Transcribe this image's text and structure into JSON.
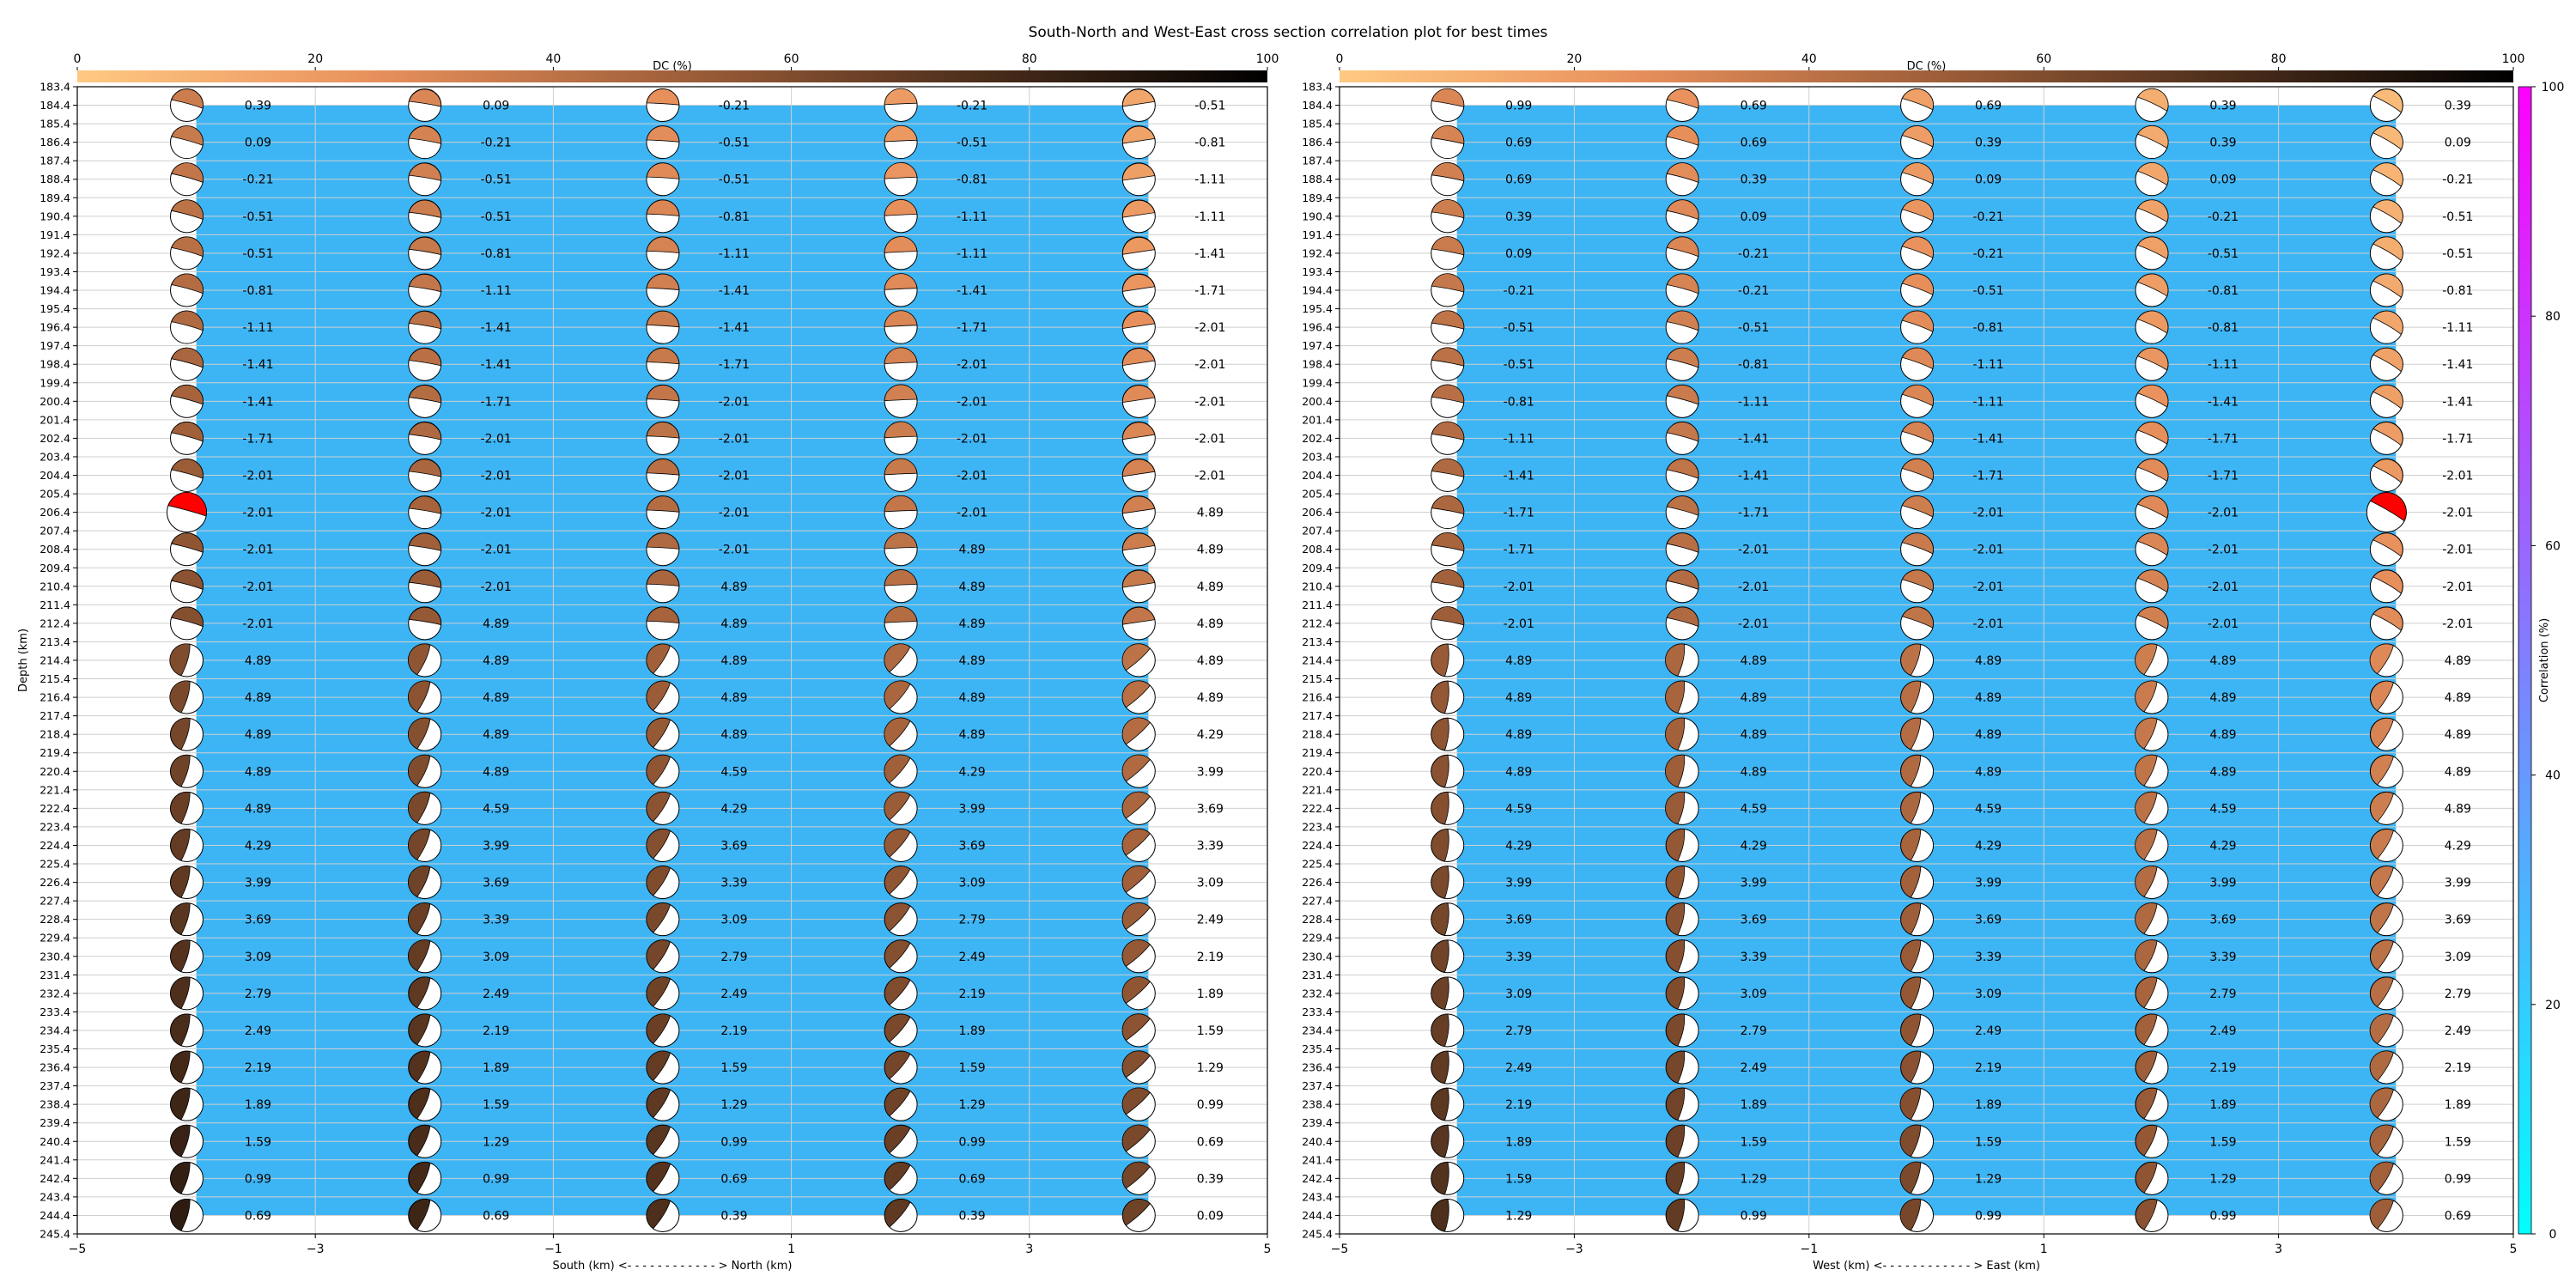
{
  "title": "South-North and West-East cross section correlation plot for best times",
  "chart_data": [
    {
      "type": "scatter",
      "panel": "left",
      "xlabel": "South (km) <- - - - - - - - - - - - > North (km)",
      "ylabel": "Depth (km)",
      "xlim": [
        -5,
        5
      ],
      "ylim": [
        183.4,
        245.4
      ],
      "x_ticks": [
        "−5",
        "−3",
        "−1",
        "1",
        "3",
        "5"
      ],
      "depth_ticks": [
        "183.4",
        "184.4",
        "185.4",
        "186.4",
        "187.4",
        "188.4",
        "189.4",
        "190.4",
        "191.4",
        "192.4",
        "193.4",
        "194.4",
        "195.4",
        "196.4",
        "197.4",
        "198.4",
        "199.4",
        "200.4",
        "201.4",
        "202.4",
        "203.4",
        "204.4",
        "205.4",
        "206.4",
        "207.4",
        "208.4",
        "209.4",
        "210.4",
        "211.4",
        "212.4",
        "213.4",
        "214.4",
        "215.4",
        "216.4",
        "217.4",
        "218.4",
        "219.4",
        "220.4",
        "221.4",
        "222.4",
        "223.4",
        "224.4",
        "225.4",
        "226.4",
        "227.4",
        "228.4",
        "229.4",
        "230.4",
        "231.4",
        "232.4",
        "233.4",
        "234.4",
        "235.4",
        "236.4",
        "237.4",
        "238.4",
        "239.4",
        "240.4",
        "241.4",
        "242.4",
        "243.4",
        "244.4",
        "245.4"
      ],
      "grid": true,
      "columns_x": [
        -4,
        -2,
        0,
        2,
        4
      ],
      "rows_depth": [
        184.4,
        186.4,
        188.4,
        190.4,
        192.4,
        194.4,
        196.4,
        198.4,
        200.4,
        202.4,
        204.4,
        206.4,
        208.4,
        210.4,
        212.4,
        214.4,
        216.4,
        218.4,
        220.4,
        222.4,
        224.4,
        226.4,
        228.4,
        230.4,
        232.4,
        234.4,
        236.4,
        238.4,
        240.4,
        242.4,
        244.4
      ],
      "labels": [
        [
          "0.39",
          "0.09",
          "-0.21",
          "-0.21",
          "-0.51"
        ],
        [
          "0.09",
          "-0.21",
          "-0.51",
          "-0.51",
          "-0.81"
        ],
        [
          "-0.21",
          "-0.51",
          "-0.51",
          "-0.81",
          "-1.11"
        ],
        [
          "-0.51",
          "-0.51",
          "-0.81",
          "-1.11",
          "-1.11"
        ],
        [
          "-0.51",
          "-0.81",
          "-1.11",
          "-1.11",
          "-1.41"
        ],
        [
          "-0.81",
          "-1.11",
          "-1.41",
          "-1.41",
          "-1.71"
        ],
        [
          "-1.11",
          "-1.41",
          "-1.41",
          "-1.71",
          "-2.01"
        ],
        [
          "-1.41",
          "-1.41",
          "-1.71",
          "-2.01",
          "-2.01"
        ],
        [
          "-1.41",
          "-1.71",
          "-2.01",
          "-2.01",
          "-2.01"
        ],
        [
          "-1.71",
          "-2.01",
          "-2.01",
          "-2.01",
          "-2.01"
        ],
        [
          "-2.01",
          "-2.01",
          "-2.01",
          "-2.01",
          "-2.01"
        ],
        [
          "-2.01",
          "-2.01",
          "-2.01",
          "-2.01",
          "4.89"
        ],
        [
          "-2.01",
          "-2.01",
          "-2.01",
          "4.89",
          "4.89"
        ],
        [
          "-2.01",
          "-2.01",
          "4.89",
          "4.89",
          "4.89"
        ],
        [
          "-2.01",
          "4.89",
          "4.89",
          "4.89",
          "4.89"
        ],
        [
          "4.89",
          "4.89",
          "4.89",
          "4.89",
          "4.89"
        ],
        [
          "4.89",
          "4.89",
          "4.89",
          "4.89",
          "4.89"
        ],
        [
          "4.89",
          "4.89",
          "4.89",
          "4.89",
          "4.29"
        ],
        [
          "4.89",
          "4.89",
          "4.59",
          "4.29",
          "3.99"
        ],
        [
          "4.89",
          "4.59",
          "4.29",
          "3.99",
          "3.69"
        ],
        [
          "4.29",
          "3.99",
          "3.69",
          "3.69",
          "3.39"
        ],
        [
          "3.99",
          "3.69",
          "3.39",
          "3.09",
          "3.09"
        ],
        [
          "3.69",
          "3.39",
          "3.09",
          "2.79",
          "2.49"
        ],
        [
          "3.09",
          "3.09",
          "2.79",
          "2.49",
          "2.19"
        ],
        [
          "2.79",
          "2.49",
          "2.49",
          "2.19",
          "1.89"
        ],
        [
          "2.49",
          "2.19",
          "2.19",
          "1.89",
          "1.59"
        ],
        [
          "2.19",
          "1.89",
          "1.59",
          "1.59",
          "1.29"
        ],
        [
          "1.89",
          "1.59",
          "1.29",
          "1.29",
          "0.99"
        ],
        [
          "1.59",
          "1.29",
          "0.99",
          "0.99",
          "0.69"
        ],
        [
          "0.99",
          "0.99",
          "0.69",
          "0.69",
          "0.39"
        ],
        [
          "0.69",
          "0.69",
          "0.39",
          "0.39",
          "0.09"
        ]
      ],
      "best_solution": {
        "row": 11,
        "col": 0,
        "color": "#ff0000"
      }
    },
    {
      "type": "scatter",
      "panel": "right",
      "xlabel": "West (km) <- - - - - - - - - - - - > East (km)",
      "ylabel": "",
      "xlim": [
        -5,
        5
      ],
      "ylim": [
        183.4,
        245.4
      ],
      "x_ticks": [
        "−5",
        "−3",
        "−1",
        "1",
        "3",
        "5"
      ],
      "grid": true,
      "columns_x": [
        -4,
        -2,
        0,
        2,
        4
      ],
      "rows_depth": [
        184.4,
        186.4,
        188.4,
        190.4,
        192.4,
        194.4,
        196.4,
        198.4,
        200.4,
        202.4,
        204.4,
        206.4,
        208.4,
        210.4,
        212.4,
        214.4,
        216.4,
        218.4,
        220.4,
        222.4,
        224.4,
        226.4,
        228.4,
        230.4,
        232.4,
        234.4,
        236.4,
        238.4,
        240.4,
        242.4,
        244.4
      ],
      "labels": [
        [
          "0.99",
          "0.69",
          "0.69",
          "0.39",
          "0.39"
        ],
        [
          "0.69",
          "0.69",
          "0.39",
          "0.39",
          "0.09"
        ],
        [
          "0.69",
          "0.39",
          "0.09",
          "0.09",
          "-0.21"
        ],
        [
          "0.39",
          "0.09",
          "-0.21",
          "-0.21",
          "-0.51"
        ],
        [
          "0.09",
          "-0.21",
          "-0.21",
          "-0.51",
          "-0.51"
        ],
        [
          "-0.21",
          "-0.21",
          "-0.51",
          "-0.81",
          "-0.81"
        ],
        [
          "-0.51",
          "-0.51",
          "-0.81",
          "-0.81",
          "-1.11"
        ],
        [
          "-0.51",
          "-0.81",
          "-1.11",
          "-1.11",
          "-1.41"
        ],
        [
          "-0.81",
          "-1.11",
          "-1.11",
          "-1.41",
          "-1.41"
        ],
        [
          "-1.11",
          "-1.41",
          "-1.41",
          "-1.71",
          "-1.71"
        ],
        [
          "-1.41",
          "-1.41",
          "-1.71",
          "-1.71",
          "-2.01"
        ],
        [
          "-1.71",
          "-1.71",
          "-2.01",
          "-2.01",
          "-2.01"
        ],
        [
          "-1.71",
          "-2.01",
          "-2.01",
          "-2.01",
          "-2.01"
        ],
        [
          "-2.01",
          "-2.01",
          "-2.01",
          "-2.01",
          "-2.01"
        ],
        [
          "-2.01",
          "-2.01",
          "-2.01",
          "-2.01",
          "-2.01"
        ],
        [
          "4.89",
          "4.89",
          "4.89",
          "4.89",
          "4.89"
        ],
        [
          "4.89",
          "4.89",
          "4.89",
          "4.89",
          "4.89"
        ],
        [
          "4.89",
          "4.89",
          "4.89",
          "4.89",
          "4.89"
        ],
        [
          "4.89",
          "4.89",
          "4.89",
          "4.89",
          "4.89"
        ],
        [
          "4.59",
          "4.59",
          "4.59",
          "4.59",
          "4.89"
        ],
        [
          "4.29",
          "4.29",
          "4.29",
          "4.29",
          "4.29"
        ],
        [
          "3.99",
          "3.99",
          "3.99",
          "3.99",
          "3.99"
        ],
        [
          "3.69",
          "3.69",
          "3.69",
          "3.69",
          "3.69"
        ],
        [
          "3.39",
          "3.39",
          "3.39",
          "3.39",
          "3.09"
        ],
        [
          "3.09",
          "3.09",
          "3.09",
          "2.79",
          "2.79"
        ],
        [
          "2.79",
          "2.79",
          "2.49",
          "2.49",
          "2.49"
        ],
        [
          "2.49",
          "2.49",
          "2.19",
          "2.19",
          "2.19"
        ],
        [
          "2.19",
          "1.89",
          "1.89",
          "1.89",
          "1.89"
        ],
        [
          "1.89",
          "1.59",
          "1.59",
          "1.59",
          "1.59"
        ],
        [
          "1.59",
          "1.29",
          "1.29",
          "1.29",
          "0.99"
        ],
        [
          "1.29",
          "0.99",
          "0.99",
          "0.99",
          "0.69"
        ]
      ],
      "best_solution": {
        "row": 11,
        "col": 4,
        "color": "#ff0000"
      }
    }
  ],
  "dc_colorbar": {
    "label": "DC (%)",
    "range": [
      0,
      100
    ],
    "ticks": [
      "0",
      "20",
      "40",
      "60",
      "80",
      "100"
    ],
    "colormap": [
      "#ffc983",
      "#e8905c",
      "#a1603a",
      "#4e2f1c",
      "#000000"
    ]
  },
  "correlation_colorbar": {
    "label": "Correlation (%)",
    "range": [
      0,
      100
    ],
    "ticks": [
      "0",
      "20",
      "40",
      "60",
      "80",
      "100"
    ],
    "colormap": [
      "#00ffff",
      "#ff00ff"
    ],
    "fill_color": "#3db5f5"
  }
}
